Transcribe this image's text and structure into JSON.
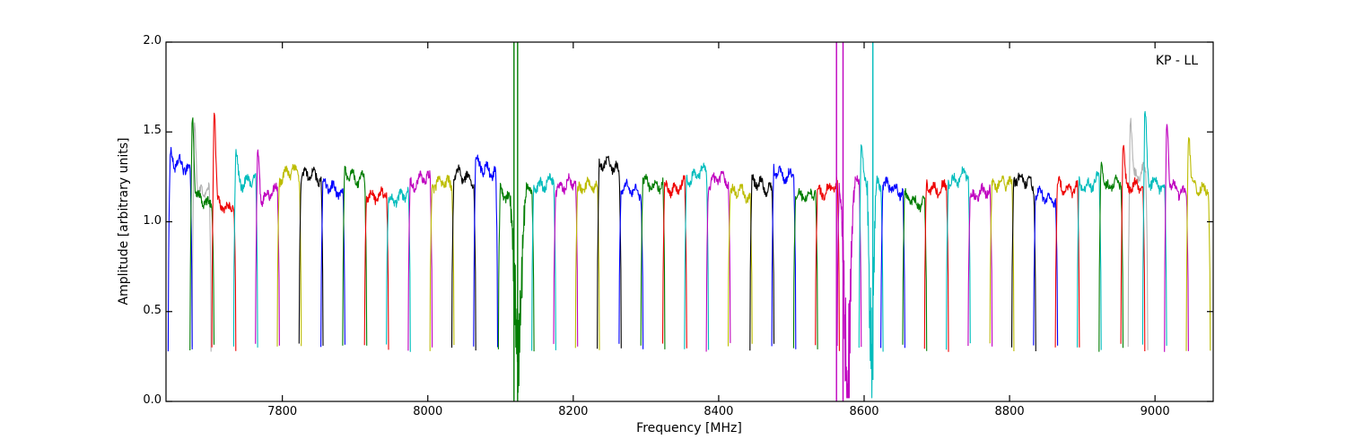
{
  "chart_data": {
    "type": "line",
    "title": "",
    "xlabel": "Frequency [MHz]",
    "ylabel": "Amplitude [arbitrary units]",
    "annotation": "KP - LL",
    "xlim": [
      7640,
      9080
    ],
    "ylim": [
      0,
      2
    ],
    "xticks": [
      7800,
      8000,
      8200,
      8400,
      8600,
      8800,
      9000
    ],
    "xtick_labels": [
      "7800",
      "8000",
      "8200",
      "8400",
      "8600",
      "8800",
      "9000"
    ],
    "yticks": [
      0,
      0.5,
      1,
      1.5,
      2
    ],
    "ytick_labels": [
      "0.0",
      "0.5",
      "1.0",
      "1.5",
      "2.0"
    ],
    "grid": false,
    "legend": "none",
    "baseline": 0.3,
    "palette": {
      "b": "#0000ff",
      "g": "#007d00",
      "r": "#ee0000",
      "c": "#00bcbc",
      "m": "#bf00bf",
      "y": "#bcbc00",
      "k": "#000000",
      "gray": "#b3b3b3"
    },
    "shadow_bands": [
      {
        "f0": 7676,
        "f1": 7702,
        "amp": 1.18,
        "peak": 1.57,
        "color": "gray"
      },
      {
        "f0": 8963,
        "f1": 8990,
        "amp": 1.26,
        "peak": 1.6,
        "color": "gray"
      }
    ],
    "subbands": [
      {
        "f0": 7643,
        "f1": 7676,
        "color": "b",
        "amp": 1.3,
        "peak": 1.36
      },
      {
        "f0": 7673,
        "f1": 7706,
        "color": "g",
        "amp": 1.12,
        "peak": 1.56
      },
      {
        "f0": 7703,
        "f1": 7736,
        "color": "r",
        "amp": 1.1,
        "peak": 1.61
      },
      {
        "f0": 7733,
        "f1": 7766,
        "color": "c",
        "amp": 1.24,
        "peak": 1.38
      },
      {
        "f0": 7763,
        "f1": 7796,
        "color": "m",
        "amp": 1.15,
        "peak": 1.4
      },
      {
        "f0": 7793,
        "f1": 7826,
        "color": "y",
        "amp": 1.26
      },
      {
        "f0": 7823,
        "f1": 7856,
        "color": "k",
        "amp": 1.24
      },
      {
        "f0": 7853,
        "f1": 7886,
        "color": "b",
        "amp": 1.18
      },
      {
        "f0": 7883,
        "f1": 7916,
        "color": "g",
        "amp": 1.26
      },
      {
        "f0": 7913,
        "f1": 7946,
        "color": "r",
        "amp": 1.16
      },
      {
        "f0": 7943,
        "f1": 7976,
        "color": "c",
        "amp": 1.14
      },
      {
        "f0": 7973,
        "f1": 8006,
        "color": "m",
        "amp": 1.22
      },
      {
        "f0": 8003,
        "f1": 8036,
        "color": "y",
        "amp": 1.2
      },
      {
        "f0": 8033,
        "f1": 8066,
        "color": "k",
        "amp": 1.24
      },
      {
        "f0": 8063,
        "f1": 8096,
        "color": "b",
        "amp": 1.3
      },
      {
        "f0": 8097,
        "f1": 8146,
        "color": "g",
        "amp": 1.16,
        "notch": {
          "center": 8124,
          "width": 8,
          "floor": 0.22
        }
      },
      {
        "f0": 8143,
        "f1": 8176,
        "color": "c",
        "amp": 1.22
      },
      {
        "f0": 8173,
        "f1": 8206,
        "color": "m",
        "amp": 1.2
      },
      {
        "f0": 8203,
        "f1": 8236,
        "color": "y",
        "amp": 1.18
      },
      {
        "f0": 8233,
        "f1": 8266,
        "color": "k",
        "amp": 1.3
      },
      {
        "f0": 8263,
        "f1": 8296,
        "color": "b",
        "amp": 1.18
      },
      {
        "f0": 8293,
        "f1": 8326,
        "color": "g",
        "amp": 1.22
      },
      {
        "f0": 8323,
        "f1": 8356,
        "color": "r",
        "amp": 1.2
      },
      {
        "f0": 8353,
        "f1": 8386,
        "color": "c",
        "amp": 1.26
      },
      {
        "f0": 8383,
        "f1": 8416,
        "color": "m",
        "amp": 1.22
      },
      {
        "f0": 8413,
        "f1": 8446,
        "color": "y",
        "amp": 1.15
      },
      {
        "f0": 8443,
        "f1": 8476,
        "color": "k",
        "amp": 1.2
      },
      {
        "f0": 8473,
        "f1": 8506,
        "color": "b",
        "amp": 1.28
      },
      {
        "f0": 8503,
        "f1": 8536,
        "color": "g",
        "amp": 1.16
      },
      {
        "f0": 8533,
        "f1": 8566,
        "color": "r",
        "amp": 1.18
      },
      {
        "f0": 8563,
        "f1": 8596,
        "color": "m",
        "amp": 1.2,
        "notch": {
          "center": 8577,
          "width": 7,
          "floor": 0.08
        }
      },
      {
        "f0": 8593,
        "f1": 8626,
        "color": "c",
        "amp": 1.22,
        "peak": 1.46,
        "notch": {
          "center": 8610,
          "width": 5,
          "floor": 0.22
        }
      },
      {
        "f0": 8623,
        "f1": 8656,
        "color": "b",
        "amp": 1.18
      },
      {
        "f0": 8653,
        "f1": 8686,
        "color": "g",
        "amp": 1.12
      },
      {
        "f0": 8683,
        "f1": 8716,
        "color": "r",
        "amp": 1.2
      },
      {
        "f0": 8713,
        "f1": 8746,
        "color": "c",
        "amp": 1.25
      },
      {
        "f0": 8743,
        "f1": 8776,
        "color": "m",
        "amp": 1.15
      },
      {
        "f0": 8773,
        "f1": 8806,
        "color": "y",
        "amp": 1.2
      },
      {
        "f0": 8803,
        "f1": 8836,
        "color": "k",
        "amp": 1.22
      },
      {
        "f0": 8833,
        "f1": 8866,
        "color": "b",
        "amp": 1.14
      },
      {
        "f0": 8863,
        "f1": 8896,
        "color": "r",
        "amp": 1.2
      },
      {
        "f0": 8893,
        "f1": 8926,
        "color": "c",
        "amp": 1.22
      },
      {
        "f0": 8923,
        "f1": 8956,
        "color": "g",
        "amp": 1.2,
        "peak": 1.38
      },
      {
        "f0": 8953,
        "f1": 8986,
        "color": "r",
        "amp": 1.18,
        "peak": 1.45
      },
      {
        "f0": 8983,
        "f1": 9016,
        "color": "c",
        "amp": 1.2,
        "peak": 1.58
      },
      {
        "f0": 9013,
        "f1": 9046,
        "color": "m",
        "amp": 1.18,
        "peak": 1.52
      },
      {
        "f0": 9043,
        "f1": 9076,
        "color": "y",
        "amp": 1.2,
        "peak": 1.48
      }
    ],
    "rfi_lines": [
      {
        "x": 8118.5,
        "y0": 0,
        "y1": 2,
        "color": "g"
      },
      {
        "x": 8123.5,
        "y0": 0,
        "y1": 2,
        "color": "g"
      },
      {
        "x": 8562,
        "y0": 0,
        "y1": 2,
        "color": "m"
      },
      {
        "x": 8571,
        "y0": 0,
        "y1": 2,
        "color": "m"
      },
      {
        "x": 8612,
        "y0": 0.12,
        "y1": 2,
        "color": "c"
      }
    ]
  }
}
